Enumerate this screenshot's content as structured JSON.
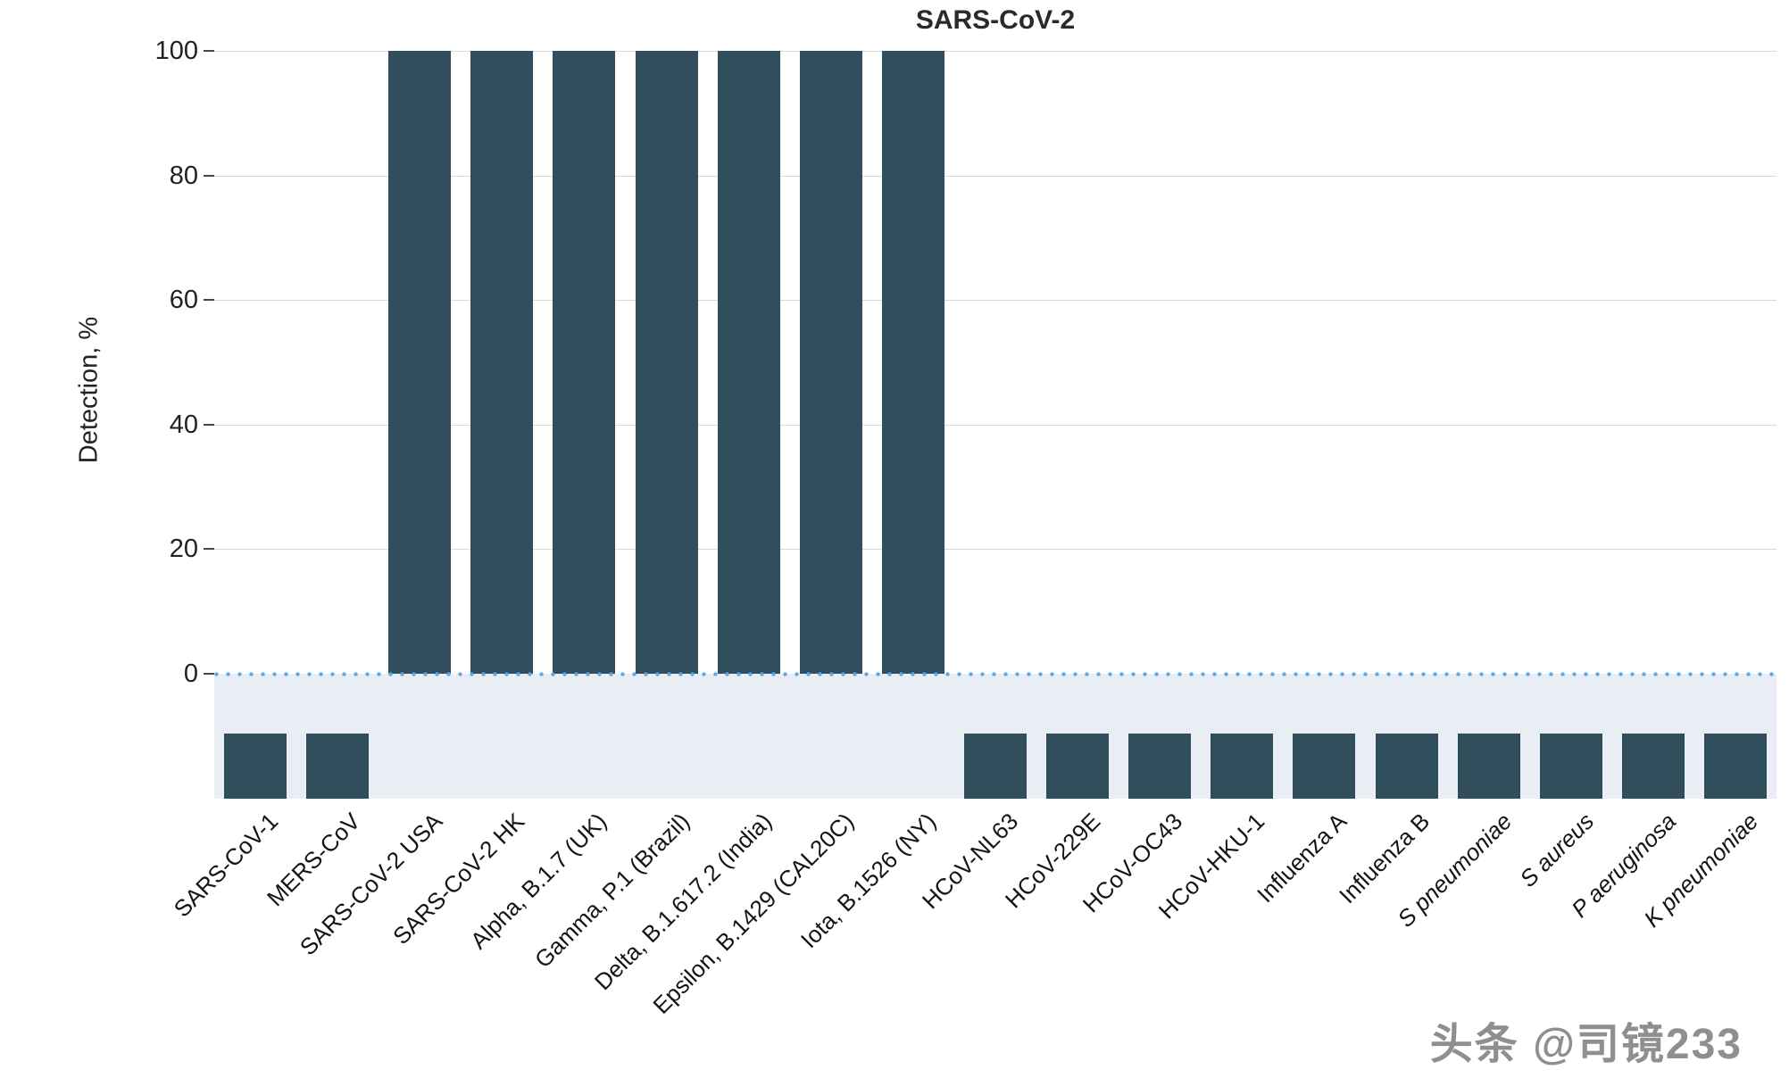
{
  "watermark": "头条 @司镜233",
  "chart_data": {
    "type": "bar",
    "title": "SARS-CoV-2",
    "xlabel": "",
    "ylabel": "Detection, %",
    "ylim": [
      -20,
      100
    ],
    "yticks": [
      0,
      20,
      40,
      60,
      80,
      100
    ],
    "grid": "horizontal-light-gray",
    "legend": "none",
    "zero_baseline": {
      "style": "dotted",
      "color": "#57aae7"
    },
    "negative_region_color": "#e9eef4",
    "bar_color": "#304e5c",
    "not_detected_rendering": "short stub bar drawn below the zero baseline",
    "categories": [
      "SARS-CoV-1",
      "MERS-CoV",
      "SARS-CoV-2 USA",
      "SARS-CoV-2 HK",
      "Alpha, B.1.7 (UK)",
      "Gamma, P.1 (Brazil)",
      "Delta, B.1.617.2 (India)",
      "Epsilon, B.1429 (CAL20C)",
      "Iota, B.1526 (NY)",
      "HCoV-NL63",
      "HCoV-229E",
      "HCoV-OC43",
      "HCoV-HKU-1",
      "Influenza A",
      "Influenza B",
      "S pneumoniae",
      "S aureus",
      "P aeruginosa",
      "K pneumoniae"
    ],
    "values": [
      0,
      0,
      100,
      100,
      100,
      100,
      100,
      100,
      100,
      0,
      0,
      0,
      0,
      0,
      0,
      0,
      0,
      0,
      0
    ],
    "italic_categories": [
      "S pneumoniae",
      "S aureus",
      "P aeruginosa",
      "K pneumoniae"
    ]
  }
}
